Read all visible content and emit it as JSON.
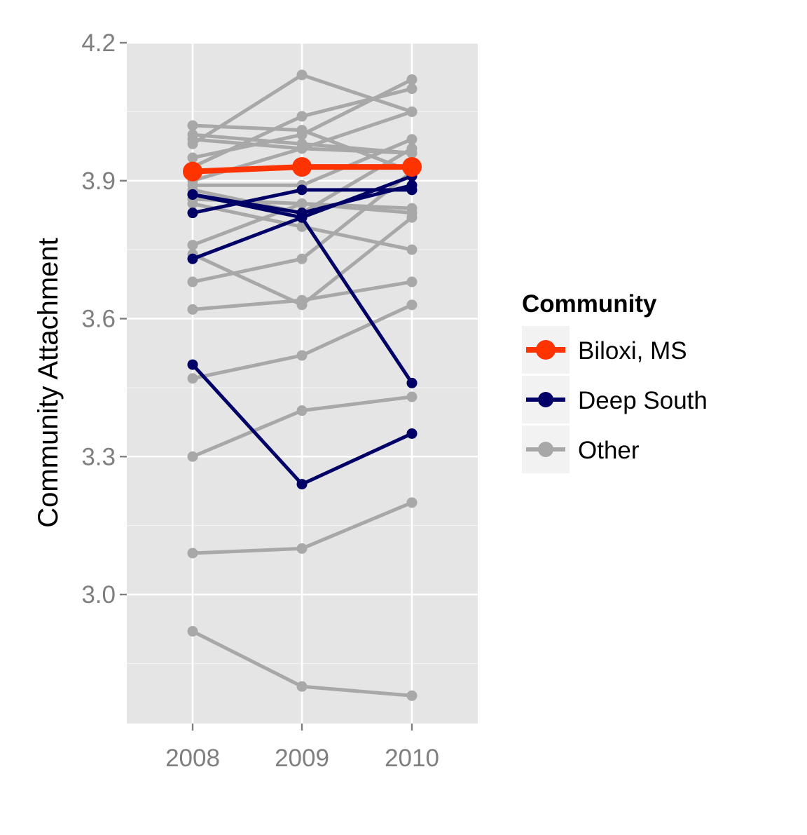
{
  "chart_data": {
    "type": "line",
    "ylabel": "Community Attachment",
    "xlabel": "",
    "x": [
      "2008",
      "2009",
      "2010"
    ],
    "ylim": [
      2.73,
      4.2
    ],
    "yticks": [
      "3.0",
      "3.3",
      "3.6",
      "3.9",
      "4.2"
    ],
    "legend": {
      "title": "Community",
      "position": "right",
      "entries": [
        {
          "label": "Biloxi, MS",
          "color": "#ff3300"
        },
        {
          "label": "Deep South",
          "color": "#000066"
        },
        {
          "label": "Other",
          "color": "#a8a8a8"
        }
      ]
    },
    "series": [
      {
        "group": "Other",
        "values": [
          4.02,
          4.01,
          3.92
        ]
      },
      {
        "group": "Other",
        "values": [
          4.0,
          3.98,
          3.96
        ]
      },
      {
        "group": "Other",
        "values": [
          3.98,
          4.13,
          4.05
        ]
      },
      {
        "group": "Other",
        "values": [
          3.95,
          4.0,
          4.12
        ]
      },
      {
        "group": "Other",
        "values": [
          3.93,
          4.04,
          4.1
        ]
      },
      {
        "group": "Other",
        "values": [
          3.9,
          3.97,
          4.05
        ]
      },
      {
        "group": "Other",
        "values": [
          3.89,
          3.89,
          3.99
        ]
      },
      {
        "group": "Other",
        "values": [
          3.88,
          3.83,
          3.97
        ]
      },
      {
        "group": "Other",
        "values": [
          3.99,
          3.97,
          3.96
        ]
      },
      {
        "group": "Other",
        "values": [
          3.86,
          3.85,
          3.84
        ]
      },
      {
        "group": "Other",
        "values": [
          3.76,
          3.85,
          3.83
        ]
      },
      {
        "group": "Other",
        "values": [
          3.74,
          3.63,
          3.82
        ]
      },
      {
        "group": "Other",
        "values": [
          3.85,
          3.8,
          3.75
        ]
      },
      {
        "group": "Other",
        "values": [
          3.68,
          3.73,
          3.92
        ]
      },
      {
        "group": "Other",
        "values": [
          3.62,
          3.64,
          3.68
        ]
      },
      {
        "group": "Other",
        "values": [
          3.47,
          3.52,
          3.63
        ]
      },
      {
        "group": "Other",
        "values": [
          3.3,
          3.4,
          3.43
        ]
      },
      {
        "group": "Other",
        "values": [
          3.09,
          3.1,
          3.2
        ]
      },
      {
        "group": "Other",
        "values": [
          2.92,
          2.8,
          2.78
        ]
      },
      {
        "group": "Deep South",
        "values": [
          3.87,
          3.83,
          3.89
        ]
      },
      {
        "group": "Deep South",
        "values": [
          3.83,
          3.88,
          3.88
        ]
      },
      {
        "group": "Deep South",
        "values": [
          3.73,
          3.82,
          3.91
        ]
      },
      {
        "group": "Deep South",
        "values": [
          3.5,
          3.24,
          3.35
        ]
      },
      {
        "group": "Deep South",
        "values": [
          3.87,
          3.82,
          3.46
        ]
      },
      {
        "group": "Biloxi, MS",
        "values": [
          3.92,
          3.93,
          3.93
        ]
      }
    ]
  }
}
